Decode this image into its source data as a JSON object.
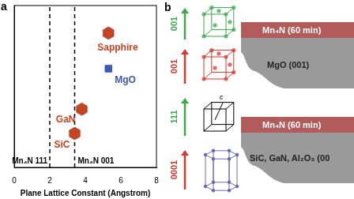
{
  "chart_data": {
    "type": "scatter",
    "title": "a",
    "x_label": "Plane Lattice Constant (Angstrom)",
    "xlim": [
      0,
      8
    ],
    "xticks": [
      0,
      2,
      4,
      6,
      8
    ],
    "ylim": [
      0,
      10
    ],
    "tick_labels": "x",
    "grid": false,
    "series": [
      {
        "name": "Sapphire",
        "color": "#c8431f",
        "marker": "hexagon",
        "x": [
          5.3
        ],
        "values": [
          8.3
        ]
      },
      {
        "name": "MgO",
        "color": "#3b5bb5",
        "marker": "square",
        "x": [
          5.3
        ],
        "values": [
          6.1
        ]
      },
      {
        "name": "GaN",
        "color": "#c8431f",
        "marker": "hexagon",
        "x": [
          3.8
        ],
        "values": [
          3.6
        ]
      },
      {
        "name": "SiC",
        "color": "#c8431f",
        "marker": "hexagon",
        "x": [
          3.4
        ],
        "values": [
          2.1
        ]
      }
    ],
    "vlines": [
      {
        "x": 2.0,
        "label": "Mn₄N 111",
        "line_style": "dashed",
        "color": "#000000"
      },
      {
        "x": 3.4,
        "label": "Mn₄N 001",
        "line_style": "dashed",
        "color": "#000000"
      }
    ]
  },
  "diagram": {
    "label": "b",
    "rows": [
      {
        "film_orientation": "001",
        "substrate_orientation": "001",
        "film": "Mn₄N (60 min)",
        "substrate": "MgO (001)"
      },
      {
        "film_orientation": "111",
        "substrate_orientation": "0001",
        "axis_label": "c",
        "film": "Mn₄N (60 min)",
        "substrate": "SiC, GaN, Al₂O₃ (00"
      }
    ]
  }
}
